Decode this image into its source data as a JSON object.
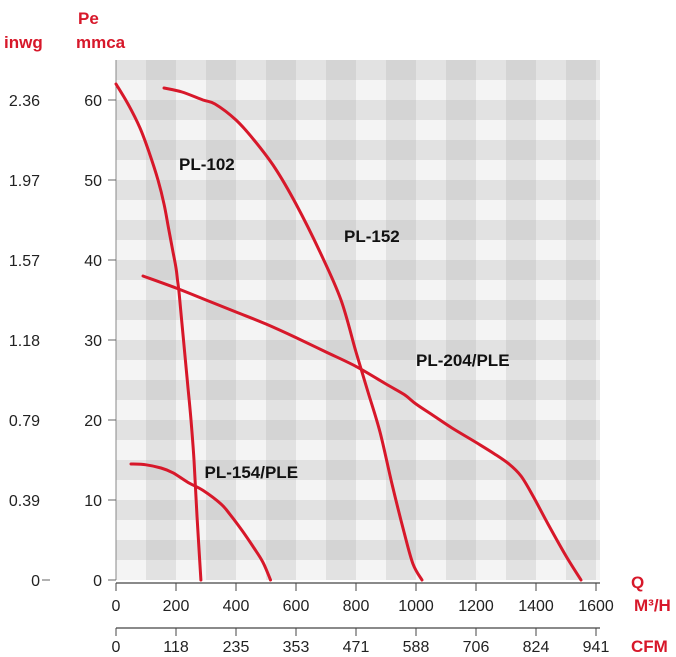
{
  "chart_data": {
    "type": "line",
    "axis_titles": {
      "y_left": "inwg",
      "y_pe": "Pe",
      "y_mmca": "mmca",
      "x_q": "Q",
      "x_m3h": "M³/H",
      "x_cfm": "CFM"
    },
    "y_ticks": [
      "0",
      "10",
      "20",
      "30",
      "40",
      "50",
      "60"
    ],
    "y_inwg_ticks": [
      "0",
      "0.39",
      "0.79",
      "1.18",
      "1.57",
      "1.97",
      "2.36"
    ],
    "x_ticks_m3h": [
      "0",
      "200",
      "400",
      "600",
      "800",
      "1000",
      "1200",
      "1400",
      "1600"
    ],
    "x_ticks_cfm": [
      "0",
      "118",
      "235",
      "353",
      "471",
      "588",
      "706",
      "824",
      "941"
    ],
    "xlim": [
      0,
      1600
    ],
    "ylim": [
      0,
      65
    ],
    "grid": true,
    "series": [
      {
        "name": "PL-102",
        "color": "#d7182a",
        "x": [
          0,
          40,
          80,
          110,
          140,
          160,
          175,
          190,
          200,
          205,
          210,
          215,
          220,
          225,
          230,
          235,
          240,
          250,
          260,
          270,
          283
        ],
        "y": [
          62,
          59.5,
          56.5,
          53.5,
          50,
          47,
          44,
          41,
          39,
          37.5,
          36,
          34,
          32,
          30,
          28,
          26,
          24,
          20,
          15,
          8,
          0
        ]
      },
      {
        "name": "PL-152",
        "color": "#d7182a",
        "x": [
          160,
          220,
          290,
          330,
          400,
          460,
          530,
          600,
          680,
          750,
          800,
          840,
          880,
          920,
          960,
          990,
          1020
        ],
        "y": [
          61.5,
          61,
          60,
          59.5,
          57.5,
          55,
          51.5,
          47,
          41,
          35,
          28.5,
          23.5,
          18.5,
          12,
          6,
          2,
          0
        ]
      },
      {
        "name": "PL-204/PLE",
        "color": "#d7182a",
        "x": [
          90,
          200,
          300,
          400,
          500,
          600,
          700,
          800,
          900,
          960,
          1000,
          1060,
          1120,
          1200,
          1260,
          1310,
          1350,
          1390,
          1440,
          1500,
          1550
        ],
        "y": [
          38,
          36.5,
          35,
          33.5,
          32,
          30.3,
          28.5,
          26.7,
          24.5,
          23.2,
          22,
          20.5,
          19,
          17.2,
          15.8,
          14.5,
          13,
          10.5,
          7,
          3,
          0
        ]
      },
      {
        "name": "PL-154/PLE",
        "color": "#d7182a",
        "x": [
          50,
          100,
          150,
          190,
          240,
          290,
          350,
          380,
          420,
          460,
          490,
          515
        ],
        "y": [
          14.5,
          14.4,
          14,
          13.4,
          12.2,
          11.2,
          9.5,
          8.2,
          6.2,
          4,
          2.2,
          0
        ]
      }
    ],
    "annotations": [
      {
        "text": "PL-102",
        "x": 210,
        "y": 52
      },
      {
        "text": "PL-152",
        "x": 760,
        "y": 43
      },
      {
        "text": "PL-204/PLE",
        "x": 1000,
        "y": 27.5
      },
      {
        "text": "PL-154/PLE",
        "x": 295,
        "y": 13.5
      }
    ]
  }
}
